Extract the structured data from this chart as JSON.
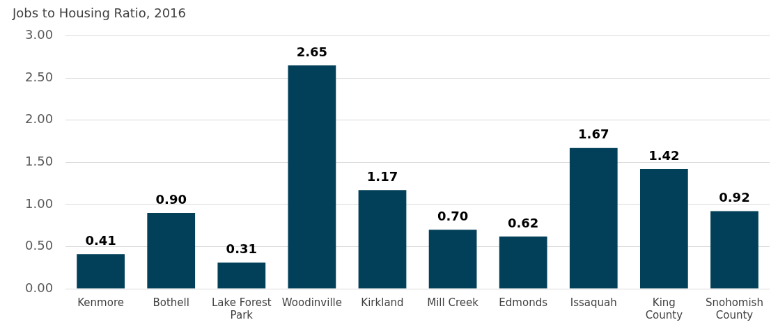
{
  "chart_data": {
    "type": "bar",
    "title": "Jobs to Housing Ratio, 2016",
    "categories": [
      "Kenmore",
      "Bothell",
      "Lake Forest Park",
      "Woodinville",
      "Kirkland",
      "Mill Creek",
      "Edmonds",
      "Issaquah",
      "King County",
      "Snohomish County"
    ],
    "values": [
      0.41,
      0.9,
      0.31,
      2.65,
      1.17,
      0.7,
      0.62,
      1.67,
      1.42,
      0.92
    ],
    "value_labels": [
      "0.41",
      "0.90",
      "0.31",
      "2.65",
      "1.17",
      "0.70",
      "0.62",
      "1.67",
      "1.42",
      "0.92"
    ],
    "color": "#024059",
    "ylim": [
      0,
      3
    ],
    "yticks": [
      {
        "value": 0,
        "label": "0.00"
      },
      {
        "value": 0.5,
        "label": "0.50"
      },
      {
        "value": 1,
        "label": "1.00"
      },
      {
        "value": 1.5,
        "label": "1.50"
      },
      {
        "value": 2,
        "label": "2.00"
      },
      {
        "value": 2.5,
        "label": "2.50"
      },
      {
        "value": 3,
        "label": "3.00"
      }
    ],
    "grid": "y"
  }
}
